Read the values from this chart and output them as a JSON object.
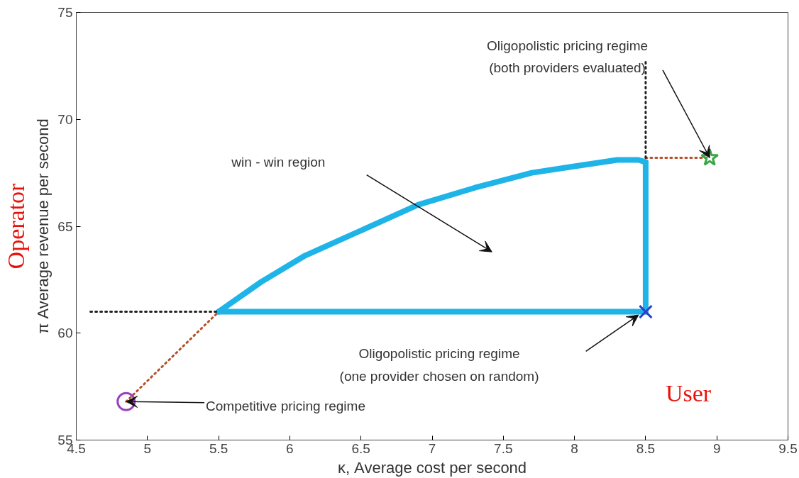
{
  "chart_data": {
    "type": "line",
    "xlabel": "κ, Average cost per second",
    "ylabel": "π Average revenue per second",
    "xlim": [
      4.5,
      9.5
    ],
    "ylim": [
      55,
      75
    ],
    "xticks": [
      4.5,
      5,
      5.5,
      6,
      6.5,
      7,
      7.5,
      8,
      8.5,
      9,
      9.5
    ],
    "yticks": [
      55,
      60,
      65,
      70,
      75
    ],
    "grid": false,
    "series": [
      {
        "color": "#1eb4e8",
        "line_style": "solid",
        "x": [
          5.5,
          5.8,
          6.1,
          6.2,
          6.5,
          6.9,
          7.3,
          7.7,
          8.0,
          8.3,
          8.45,
          8.5
        ],
        "values": [
          61,
          62.4,
          63.6,
          63.9,
          64.8,
          66,
          66.8,
          67.5,
          67.8,
          68.1,
          68.1,
          68.0
        ]
      },
      {
        "color": "#1eb4e8",
        "line_style": "solid",
        "x": [
          8.5,
          8.5
        ],
        "values": [
          68.0,
          61
        ]
      },
      {
        "color": "#1eb4e8",
        "line_style": "solid",
        "x": [
          5.5,
          8.5
        ],
        "values": [
          61,
          61
        ]
      },
      {
        "color": "#b5502a",
        "line_style": "dotted",
        "x": [
          4.85,
          5.5
        ],
        "values": [
          56.8,
          61
        ]
      },
      {
        "color": "#b5502a",
        "line_style": "dotted",
        "x": [
          8.5,
          8.95
        ],
        "values": [
          68.2,
          68.2
        ]
      },
      {
        "color": "#222222",
        "line_style": "dotted",
        "x": [
          4.6,
          5.5
        ],
        "values": [
          61,
          61
        ]
      },
      {
        "color": "#222222",
        "line_style": "dotted",
        "x": [
          8.5,
          8.5
        ],
        "values": [
          68.2,
          72.8
        ]
      },
      {
        "type": "scatter",
        "marker": "circle",
        "color": "#9b3fc0",
        "x": [
          4.85
        ],
        "values": [
          56.8
        ]
      },
      {
        "type": "scatter",
        "marker": "cross",
        "color": "#2a3fd0",
        "x": [
          8.5
        ],
        "values": [
          61
        ]
      },
      {
        "type": "scatter",
        "marker": "star",
        "color": "#3aa648",
        "x": [
          8.95
        ],
        "values": [
          68.2
        ]
      }
    ],
    "annotations": [
      {
        "text": "Oligopolistic pricing regime\n(both providers evaluated)",
        "x": 8.95,
        "y": 68.2
      },
      "win - win region",
      "Oligopolistic pricing regime\n(one provider chosen on random)",
      {
        "text": "Competitive pricing regime",
        "x": 4.85,
        "y": 56.8
      },
      "Operator",
      "User"
    ]
  }
}
